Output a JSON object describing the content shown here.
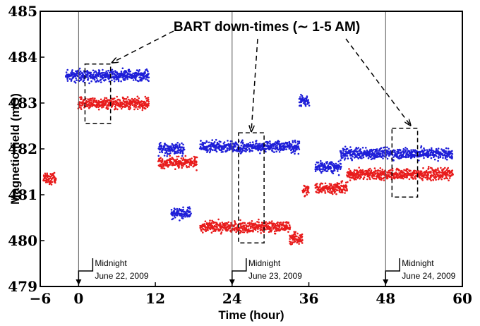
{
  "chart_data": {
    "type": "scatter",
    "xlabel": "Time (hour)",
    "ylabel": "Magnetic field (mG)",
    "xlim": [
      -6,
      60
    ],
    "ylim": [
      479,
      485
    ],
    "x_ticks": [
      -6,
      0,
      12,
      24,
      36,
      48,
      60
    ],
    "x_tick_labels": [
      "−6",
      "0",
      "12",
      "24",
      "36",
      "48",
      "60"
    ],
    "y_ticks": [
      479,
      480,
      481,
      482,
      483,
      484,
      485
    ],
    "grid": false,
    "series": [
      {
        "color": "#1f1fd8",
        "segments": [
          {
            "x0": -2,
            "x1": 11,
            "y": 483.6
          },
          {
            "x0": 12.5,
            "x1": 16.5,
            "y": 482.0
          },
          {
            "x0": 14.5,
            "x1": 17.5,
            "y": 480.6
          },
          {
            "x0": 19,
            "x1": 34.5,
            "y": 482.05
          },
          {
            "x0": 34.5,
            "x1": 36,
            "y": 483.05
          },
          {
            "x0": 37,
            "x1": 41,
            "y": 481.6
          },
          {
            "x0": 41,
            "x1": 58.5,
            "y": 481.9
          }
        ]
      },
      {
        "color": "#e81c1c",
        "segments": [
          {
            "x0": -5.5,
            "x1": -3.5,
            "y": 481.35
          },
          {
            "x0": 0,
            "x1": 11,
            "y": 483.0
          },
          {
            "x0": 12.5,
            "x1": 18.5,
            "y": 481.7
          },
          {
            "x0": 19,
            "x1": 33,
            "y": 480.3
          },
          {
            "x0": 33,
            "x1": 35,
            "y": 480.05
          },
          {
            "x0": 35,
            "x1": 36,
            "y": 481.1
          },
          {
            "x0": 37,
            "x1": 42,
            "y": 481.15
          },
          {
            "x0": 42,
            "x1": 58.5,
            "y": 481.45
          }
        ]
      }
    ],
    "vertical_lines": [
      0,
      24,
      48
    ],
    "annotations": {
      "title": "BART down-times (∼ 1-5 AM)",
      "downtime_boxes": [
        {
          "x0": 1,
          "x1": 5,
          "y0": 482.55,
          "y1": 483.85
        },
        {
          "x0": 25,
          "x1": 29,
          "y0": 479.95,
          "y1": 482.35
        },
        {
          "x0": 49,
          "x1": 53,
          "y0": 480.95,
          "y1": 482.45
        }
      ],
      "midnight_labels": [
        {
          "x": 0,
          "line1": "Midnight",
          "line2": "June 22, 2009"
        },
        {
          "x": 24,
          "line1": "Midnight",
          "line2": "June 23, 2009"
        },
        {
          "x": 48,
          "line1": "Midnight",
          "line2": "June 24, 2009"
        }
      ]
    }
  }
}
